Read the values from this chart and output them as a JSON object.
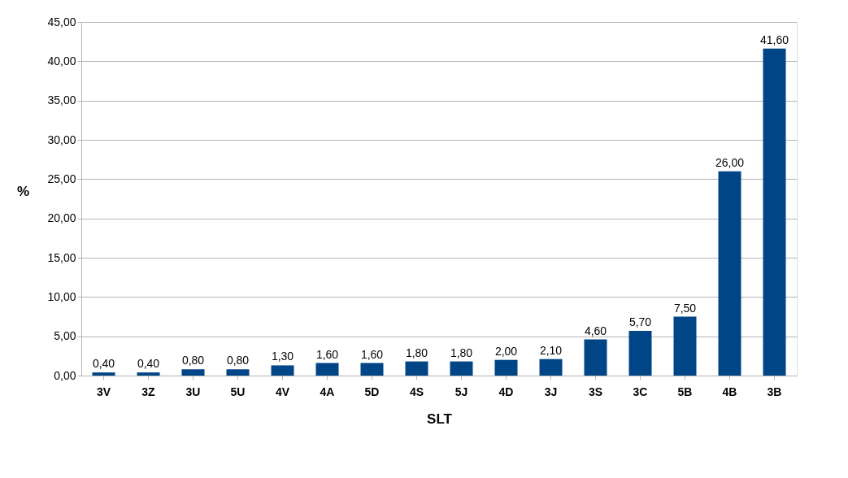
{
  "chart_data": {
    "type": "bar",
    "xlabel": "SLT",
    "ylabel": "%",
    "categories": [
      "3V",
      "3Z",
      "3U",
      "5U",
      "4V",
      "4A",
      "5D",
      "4S",
      "5J",
      "4D",
      "3J",
      "3S",
      "3C",
      "5B",
      "4B",
      "3B"
    ],
    "values": [
      0.4,
      0.4,
      0.8,
      0.8,
      1.3,
      1.6,
      1.6,
      1.8,
      1.8,
      2.0,
      2.1,
      4.6,
      5.7,
      7.5,
      26.0,
      41.6
    ],
    "value_labels": [
      "0,40",
      "0,40",
      "0,80",
      "0,80",
      "1,30",
      "1,60",
      "1,60",
      "1,80",
      "1,80",
      "2,00",
      "2,10",
      "4,60",
      "5,70",
      "7,50",
      "26,00",
      "41,60"
    ],
    "color": "#004586",
    "ylim": [
      0,
      45
    ],
    "yticks": [
      {
        "value": 0,
        "label": "0,00"
      },
      {
        "value": 5,
        "label": "5,00"
      },
      {
        "value": 10,
        "label": "10,00"
      },
      {
        "value": 15,
        "label": "15,00"
      },
      {
        "value": 20,
        "label": "20,00"
      },
      {
        "value": 25,
        "label": "25,00"
      },
      {
        "value": 30,
        "label": "30,00"
      },
      {
        "value": 35,
        "label": "35,00"
      },
      {
        "value": 40,
        "label": "40,00"
      },
      {
        "value": 45,
        "label": "45,00"
      }
    ],
    "grid": "y"
  }
}
